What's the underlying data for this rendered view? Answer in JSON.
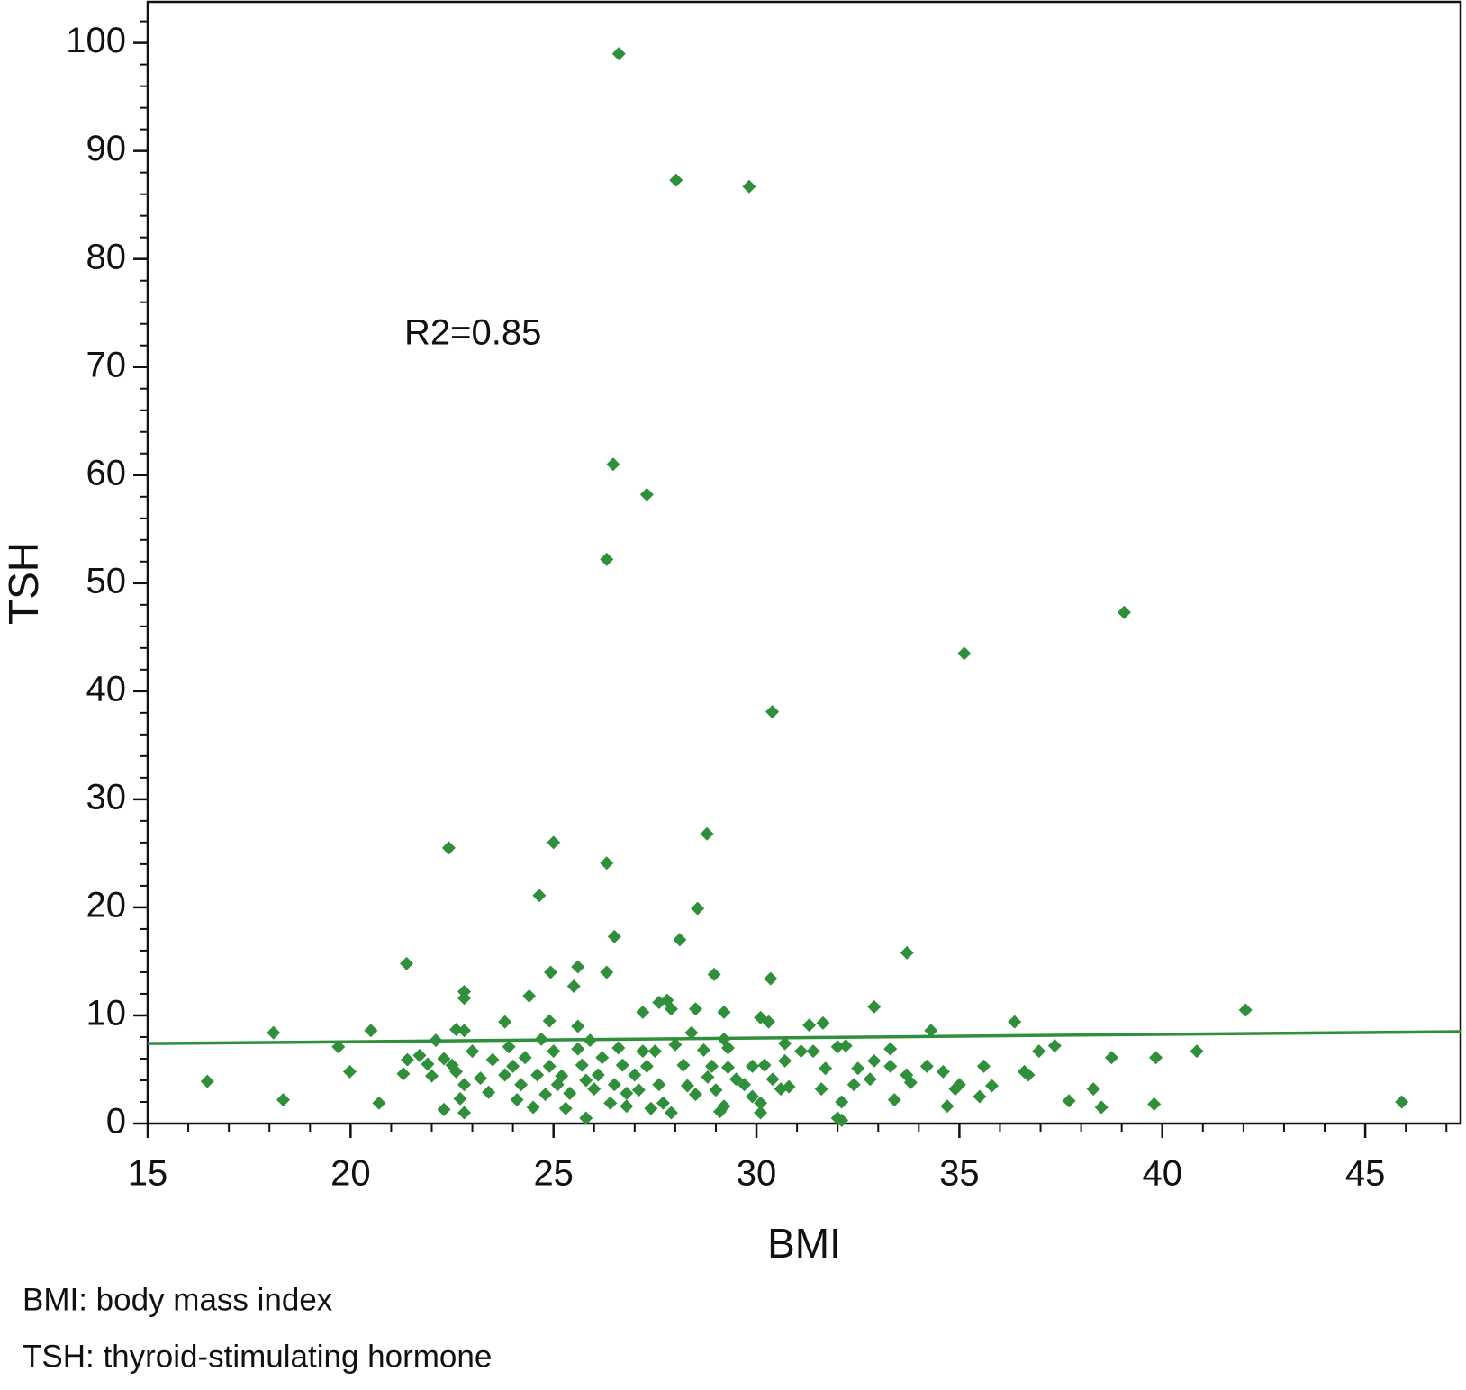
{
  "chart_data": {
    "type": "scatter",
    "xlabel": "BMI",
    "ylabel": "TSH",
    "annotation": "R2=0.85",
    "footnotes": [
      "BMI: body mass index",
      "TSH: thyroid-stimulating hormone"
    ],
    "color": "#2f8f3a",
    "xlim": [
      15,
      47.35
    ],
    "ylim": [
      0,
      103.8
    ],
    "xticks": [
      15,
      20,
      25,
      30,
      35,
      40,
      45
    ],
    "yticks": [
      0,
      10,
      20,
      30,
      40,
      50,
      60,
      70,
      80,
      90,
      100
    ],
    "trend_line": {
      "x": [
        15,
        47.35
      ],
      "y": [
        7.4,
        8.5
      ]
    },
    "x": [
      26.61,
      28.02,
      29.82,
      26.47,
      27.3,
      26.31,
      39.06,
      35.12,
      30.39,
      28.78,
      25.0,
      22.42,
      26.31,
      24.65,
      28.55,
      26.5,
      28.11,
      33.71,
      21.38,
      25.6,
      24.93,
      26.31,
      28.96,
      30.35,
      25.5,
      22.8,
      22.8,
      24.4,
      27.6,
      27.8,
      27.9,
      27.2,
      32.9,
      28.5,
      29.2,
      42.05,
      36.36,
      31.64,
      30.1,
      30.3,
      18.1,
      20.5,
      34.3,
      22.6,
      22.8,
      23.8,
      24.9,
      25.6,
      31.3,
      40.85,
      36.96,
      37.35,
      38.75,
      39.84,
      16.47,
      18.34,
      19.98,
      19.7,
      20.7,
      45.9,
      39.8,
      37.7,
      38.5,
      38.3,
      36.7,
      36.6,
      35.6,
      35.8,
      35.5,
      34.7,
      34.9,
      35.0,
      34.6,
      34.2,
      33.7,
      33.8,
      33.4,
      33.3,
      33.3,
      32.9,
      32.8,
      32.5,
      32.4,
      32.1,
      32.0,
      32.1,
      32.2,
      32.0,
      31.7,
      31.6,
      31.4,
      31.1,
      30.8,
      30.6,
      30.7,
      30.7,
      30.4,
      30.2,
      30.1,
      30.1,
      29.9,
      29.9,
      29.7,
      29.5,
      29.3,
      29.3,
      29.2,
      29.2,
      29.1,
      29.0,
      28.9,
      28.8,
      28.7,
      28.5,
      28.4,
      28.3,
      28.2,
      28.0,
      27.9,
      27.7,
      27.6,
      27.5,
      27.4,
      27.3,
      27.2,
      27.1,
      27.0,
      26.8,
      26.8,
      26.7,
      26.6,
      26.5,
      26.4,
      26.2,
      26.1,
      26.0,
      25.9,
      25.8,
      25.8,
      25.7,
      25.6,
      25.4,
      25.3,
      25.2,
      25.1,
      25.0,
      24.9,
      24.8,
      24.7,
      24.6,
      24.5,
      24.3,
      24.2,
      24.1,
      24.0,
      23.9,
      23.8,
      23.5,
      23.4,
      23.2,
      23.0,
      22.8,
      22.7,
      22.8,
      22.6,
      22.5,
      22.3,
      22.3,
      22.1,
      22.0,
      21.9,
      21.7,
      21.4,
      21.3
    ],
    "values": [
      99.0,
      87.3,
      86.7,
      61.0,
      58.2,
      52.2,
      47.3,
      43.5,
      38.1,
      26.8,
      26.0,
      25.5,
      24.1,
      21.1,
      19.9,
      17.3,
      17.0,
      15.8,
      14.8,
      14.5,
      14.0,
      14.0,
      13.8,
      13.4,
      12.7,
      12.2,
      11.6,
      11.8,
      11.2,
      11.4,
      10.6,
      10.3,
      10.8,
      10.6,
      10.3,
      10.5,
      9.4,
      9.3,
      9.8,
      9.4,
      8.4,
      8.6,
      8.6,
      8.7,
      8.6,
      9.4,
      9.5,
      9.0,
      9.1,
      6.7,
      6.7,
      7.2,
      6.1,
      6.1,
      3.9,
      2.2,
      4.8,
      7.1,
      1.9,
      2.0,
      1.8,
      2.1,
      1.5,
      3.2,
      4.5,
      4.8,
      5.3,
      3.5,
      2.5,
      1.6,
      3.2,
      3.6,
      4.8,
      5.3,
      4.5,
      3.8,
      2.2,
      5.3,
      6.9,
      5.8,
      4.1,
      5.1,
      3.6,
      0.3,
      0.5,
      2.0,
      7.2,
      7.1,
      5.1,
      3.2,
      6.7,
      6.7,
      3.4,
      3.2,
      5.8,
      7.4,
      4.1,
      5.4,
      1.9,
      1.0,
      2.5,
      5.3,
      3.6,
      4.1,
      5.2,
      7.0,
      7.8,
      1.6,
      1.1,
      3.1,
      5.3,
      4.3,
      6.8,
      2.7,
      8.4,
      3.5,
      5.4,
      7.3,
      1.0,
      1.9,
      3.6,
      6.7,
      1.4,
      5.3,
      6.7,
      3.1,
      4.5,
      1.6,
      2.8,
      5.4,
      7.0,
      3.6,
      1.9,
      6.1,
      4.5,
      3.2,
      7.7,
      4.0,
      0.5,
      5.4,
      6.9,
      2.8,
      1.4,
      4.4,
      3.6,
      6.7,
      5.3,
      2.7,
      7.8,
      4.5,
      1.5,
      6.1,
      3.6,
      2.2,
      5.3,
      7.1,
      4.5,
      5.9,
      2.9,
      4.2,
      6.7,
      3.6,
      2.3,
      1.0,
      4.8,
      5.4,
      1.3,
      6.0,
      7.7,
      4.4,
      5.5,
      6.3,
      5.9,
      4.6
    ]
  }
}
